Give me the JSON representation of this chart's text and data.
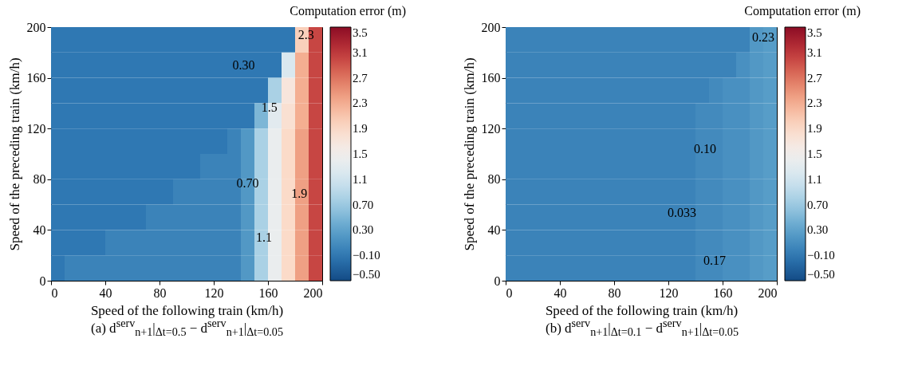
{
  "chart_data": [
    {
      "type": "heatmap",
      "title": "(a) d$^{serv}$$_{n+1}$|$_{Δt=0.5}$ − d$^{serv}$$_{n+1}$|$_{Δt=0.05}$",
      "xlabel": "Speed of the following train (km/h)",
      "ylabel": "Speed of the preceding train (km/h)",
      "clabel": "Computation error (m)",
      "x": [
        5,
        15,
        25,
        35,
        45,
        55,
        65,
        75,
        85,
        95,
        105,
        115,
        125,
        135,
        145,
        155,
        165,
        175,
        185,
        195
      ],
      "y": [
        190,
        170,
        150,
        130,
        110,
        90,
        70,
        50,
        30,
        10
      ],
      "xlim": [
        0,
        200
      ],
      "xticks": [
        0,
        40,
        80,
        120,
        160,
        200
      ],
      "ylim": [
        0,
        200
      ],
      "yticks": [
        0,
        40,
        80,
        120,
        160,
        200
      ],
      "clim": [
        -0.5,
        3.5
      ],
      "cticks": [
        {
          "value": -0.5,
          "label": "−0.50"
        },
        {
          "value": -0.1,
          "label": "−0.10"
        },
        {
          "value": 0.3,
          "label": "0.30"
        },
        {
          "value": 0.7,
          "label": "0.70"
        },
        1.1,
        1.5,
        1.9,
        2.3,
        2.7,
        3.1,
        3.5
      ],
      "cells": [
        [
          -0.1,
          -0.1,
          -0.1,
          -0.1,
          -0.1,
          -0.1,
          -0.1,
          -0.1,
          -0.1,
          -0.1,
          -0.1,
          -0.1,
          -0.1,
          -0.1,
          -0.1,
          -0.1,
          -0.1,
          -0.1,
          2.0,
          3.0
        ],
        [
          -0.1,
          -0.1,
          -0.1,
          -0.1,
          -0.1,
          -0.1,
          -0.1,
          -0.1,
          -0.1,
          -0.1,
          -0.1,
          -0.1,
          -0.1,
          -0.1,
          -0.1,
          -0.1,
          -0.1,
          1.2,
          2.3,
          3.0
        ],
        [
          -0.1,
          -0.1,
          -0.1,
          -0.1,
          -0.1,
          -0.1,
          -0.1,
          -0.1,
          -0.1,
          -0.1,
          -0.1,
          -0.1,
          -0.1,
          -0.1,
          -0.1,
          -0.1,
          0.8,
          1.7,
          2.3,
          3.0
        ],
        [
          -0.1,
          -0.1,
          -0.1,
          -0.1,
          -0.1,
          -0.1,
          -0.1,
          -0.1,
          -0.1,
          -0.1,
          -0.1,
          -0.1,
          -0.1,
          -0.1,
          -0.1,
          0.5,
          1.3,
          1.8,
          2.3,
          3.0
        ],
        [
          -0.1,
          -0.1,
          -0.1,
          -0.1,
          -0.1,
          -0.1,
          -0.1,
          -0.1,
          -0.1,
          -0.1,
          -0.1,
          -0.1,
          -0.1,
          0.0,
          0.2,
          0.8,
          1.4,
          1.9,
          2.4,
          3.0
        ],
        [
          -0.1,
          -0.1,
          -0.1,
          -0.1,
          -0.1,
          -0.1,
          -0.1,
          -0.1,
          -0.1,
          -0.1,
          -0.1,
          0.0,
          0.0,
          0.0,
          0.2,
          0.8,
          1.4,
          1.9,
          2.4,
          3.0
        ],
        [
          -0.1,
          -0.1,
          -0.1,
          -0.1,
          -0.1,
          -0.1,
          -0.1,
          -0.1,
          -0.1,
          0.0,
          0.0,
          0.0,
          0.0,
          0.0,
          0.2,
          0.8,
          1.4,
          1.9,
          2.4,
          3.0
        ],
        [
          -0.1,
          -0.1,
          -0.1,
          -0.1,
          -0.1,
          -0.1,
          -0.1,
          0.0,
          0.0,
          0.0,
          0.0,
          0.0,
          0.0,
          0.0,
          0.2,
          0.8,
          1.4,
          1.9,
          2.4,
          3.0
        ],
        [
          -0.1,
          -0.1,
          -0.1,
          -0.1,
          0.0,
          0.0,
          0.0,
          0.0,
          0.0,
          0.0,
          0.0,
          0.0,
          0.0,
          0.0,
          0.2,
          0.8,
          1.4,
          1.9,
          2.4,
          3.0
        ],
        [
          -0.1,
          0.0,
          0.0,
          0.0,
          0.0,
          0.0,
          0.0,
          0.0,
          0.0,
          0.0,
          0.0,
          0.0,
          0.0,
          0.0,
          0.2,
          0.8,
          1.4,
          1.9,
          2.4,
          3.0
        ]
      ],
      "annotations": [
        "2.3",
        "0.30",
        "1.5",
        "0.70",
        "1.9",
        "1.1"
      ]
    },
    {
      "type": "heatmap",
      "title": "(b) d$^{serv}$$_{n+1}$|$_{Δt=0.1}$ − d$^{serv}$$_{n+1}$|$_{Δt=0.05}$",
      "xlabel": "Speed of the following train (km/h)",
      "ylabel": "Speed of the preceding train (km/h)",
      "clabel": "Computation error (m)",
      "x": [
        5,
        15,
        25,
        35,
        45,
        55,
        65,
        75,
        85,
        95,
        105,
        115,
        125,
        135,
        145,
        155,
        165,
        175,
        185,
        195
      ],
      "y": [
        190,
        170,
        150,
        130,
        110,
        90,
        70,
        50,
        30,
        10
      ],
      "xlim": [
        0,
        200
      ],
      "xticks": [
        0,
        40,
        80,
        120,
        160,
        200
      ],
      "ylim": [
        0,
        200
      ],
      "yticks": [
        0,
        40,
        80,
        120,
        160,
        200
      ],
      "clim": [
        -0.5,
        3.5
      ],
      "cticks": [
        {
          "value": -0.5,
          "label": "−0.50"
        },
        {
          "value": -0.1,
          "label": "−0.10"
        },
        {
          "value": 0.3,
          "label": "0.30"
        },
        {
          "value": 0.7,
          "label": "0.70"
        },
        1.1,
        1.5,
        1.9,
        2.3,
        2.7,
        3.1,
        3.5
      ],
      "cells": [
        [
          0.0,
          0.0,
          0.0,
          0.0,
          0.0,
          0.0,
          0.0,
          0.0,
          0.0,
          0.0,
          0.0,
          0.0,
          0.0,
          0.0,
          0.0,
          0.0,
          0.0,
          0.0,
          0.2,
          0.25
        ],
        [
          0.0,
          0.0,
          0.0,
          0.0,
          0.0,
          0.0,
          0.0,
          0.0,
          0.0,
          0.0,
          0.0,
          0.0,
          0.0,
          0.0,
          0.0,
          0.0,
          0.0,
          0.13,
          0.2,
          0.25
        ],
        [
          0.0,
          0.0,
          0.0,
          0.0,
          0.0,
          0.0,
          0.0,
          0.0,
          0.0,
          0.0,
          0.0,
          0.0,
          0.0,
          0.0,
          0.0,
          0.07,
          0.13,
          0.13,
          0.2,
          0.25
        ],
        [
          0.0,
          0.0,
          0.0,
          0.0,
          0.0,
          0.0,
          0.0,
          0.0,
          0.0,
          0.0,
          0.0,
          0.0,
          0.0,
          0.0,
          0.07,
          0.07,
          0.13,
          0.13,
          0.2,
          0.25
        ],
        [
          0.0,
          0.0,
          0.0,
          0.0,
          0.0,
          0.0,
          0.0,
          0.0,
          0.0,
          0.0,
          0.0,
          0.0,
          0.0,
          0.0,
          0.07,
          0.07,
          0.13,
          0.13,
          0.2,
          0.25
        ],
        [
          0.0,
          0.0,
          0.0,
          0.0,
          0.0,
          0.0,
          0.0,
          0.0,
          0.0,
          0.0,
          0.0,
          0.0,
          0.0,
          0.0,
          0.07,
          0.07,
          0.13,
          0.13,
          0.2,
          0.25
        ],
        [
          0.0,
          0.0,
          0.0,
          0.0,
          0.0,
          0.0,
          0.0,
          0.0,
          0.0,
          0.0,
          0.0,
          0.0,
          0.0,
          0.0,
          0.07,
          0.07,
          0.13,
          0.13,
          0.2,
          0.25
        ],
        [
          0.0,
          0.0,
          0.0,
          0.0,
          0.0,
          0.0,
          0.0,
          0.0,
          0.0,
          0.0,
          0.0,
          0.0,
          0.0,
          0.0,
          0.07,
          0.07,
          0.13,
          0.13,
          0.2,
          0.25
        ],
        [
          0.0,
          0.0,
          0.0,
          0.0,
          0.0,
          0.0,
          0.0,
          0.0,
          0.0,
          0.0,
          0.0,
          0.0,
          0.0,
          0.0,
          0.07,
          0.07,
          0.13,
          0.13,
          0.2,
          0.25
        ],
        [
          0.0,
          0.0,
          0.0,
          0.0,
          0.0,
          0.0,
          0.0,
          0.0,
          0.0,
          0.0,
          0.0,
          0.0,
          0.0,
          0.0,
          0.07,
          0.07,
          0.13,
          0.13,
          0.2,
          0.25
        ]
      ],
      "annotations": [
        "0.23",
        "0.10",
        "0.033",
        "0.17"
      ]
    }
  ]
}
